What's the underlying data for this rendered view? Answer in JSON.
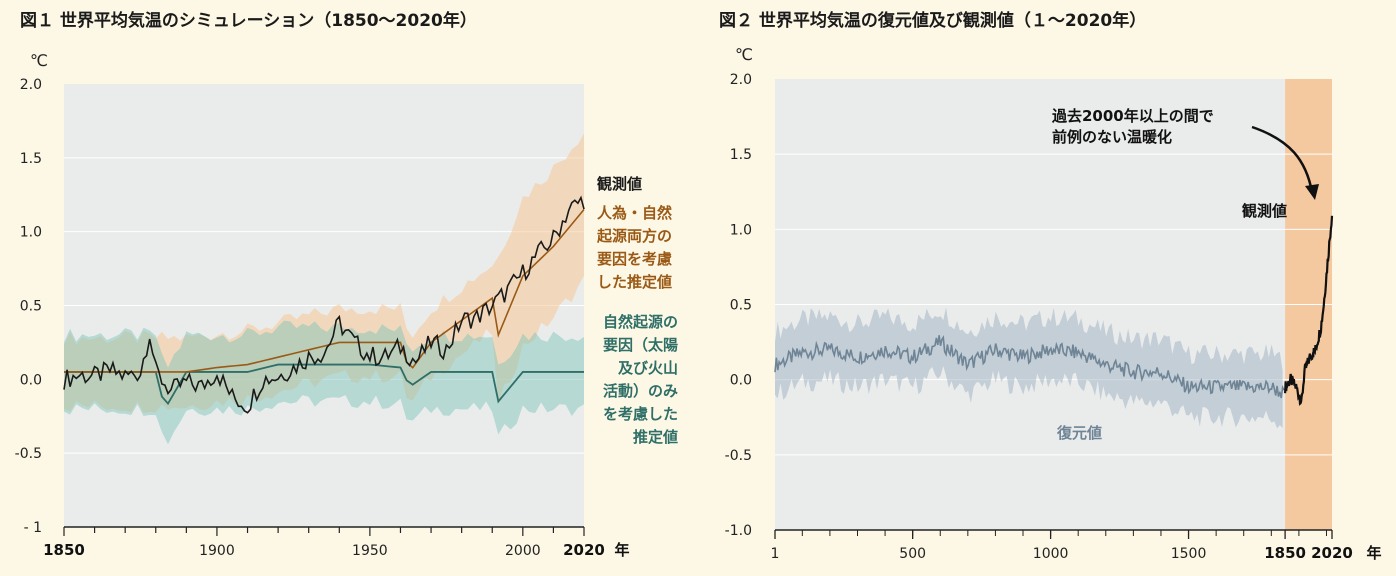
{
  "figure1": {
    "title": "図１ 世界平均気温のシミュレーション（1850〜2020年）",
    "unit": "℃",
    "x_unit": "年",
    "labels": {
      "observed": "観測値",
      "human_natural": [
        "人為・自然",
        "起源両方の",
        "要因を考慮",
        "した推定値"
      ],
      "natural_only": [
        "自然起源の",
        "要因（太陽",
        "及び火山",
        "活動）のみ",
        "を考慮した",
        "推定値"
      ]
    },
    "colors": {
      "observed": "#1a1a1a",
      "human_natural": "#9a5a16",
      "natural_only": "#2f6f68"
    }
  },
  "figure2": {
    "title": "図２ 世界平均気温の復元値及び観測値（１〜2020年）",
    "unit": "℃",
    "x_unit": "年",
    "labels": {
      "warming_note": [
        "過去2000年以上の間で",
        "前例のない温暖化"
      ],
      "observed": "観測値",
      "reconstructed": "復元値"
    },
    "colors": {
      "observed": "#111111",
      "reconstructed": "#6f8596",
      "instrumental_band": "#f5c9a0"
    }
  },
  "chart_data": [
    {
      "type": "line",
      "title": "図１ 世界平均気温のシミュレーション（1850〜2020年）",
      "xlabel": "年",
      "ylabel": "℃",
      "xlim": [
        1850,
        2020
      ],
      "ylim": [
        -1,
        2
      ],
      "x_ticks": [
        "1850",
        "1900",
        "1950",
        "2000",
        "2020"
      ],
      "y_ticks": [
        "2.0",
        "1.5",
        "1.0",
        "0.5",
        "0.0",
        "-0.5",
        "- 1"
      ],
      "series": [
        {
          "name": "観測値",
          "x": [
            1850,
            1855,
            1860,
            1865,
            1870,
            1875,
            1878,
            1880,
            1885,
            1890,
            1895,
            1900,
            1905,
            1910,
            1915,
            1920,
            1925,
            1930,
            1935,
            1940,
            1945,
            1950,
            1955,
            1960,
            1965,
            1970,
            1975,
            1980,
            1985,
            1990,
            1995,
            2000,
            2005,
            2010,
            2015,
            2020
          ],
          "y": [
            0.0,
            0.03,
            0.02,
            0.06,
            0.02,
            0.05,
            0.32,
            0.05,
            -0.08,
            -0.02,
            -0.05,
            0.05,
            -0.12,
            -0.18,
            0.0,
            0.02,
            0.08,
            0.15,
            0.18,
            0.38,
            0.25,
            0.16,
            0.15,
            0.22,
            0.12,
            0.25,
            0.2,
            0.4,
            0.42,
            0.5,
            0.6,
            0.72,
            0.85,
            0.95,
            1.15,
            1.22
          ]
        },
        {
          "name": "人為・自然起源両方の要因を考慮した推定値",
          "x": [
            1850,
            1860,
            1870,
            1880,
            1890,
            1900,
            1910,
            1920,
            1930,
            1940,
            1950,
            1960,
            1963,
            1970,
            1980,
            1990,
            1992,
            2000,
            2010,
            2020
          ],
          "y": [
            0.05,
            0.05,
            0.05,
            0.05,
            0.05,
            0.08,
            0.1,
            0.15,
            0.2,
            0.25,
            0.25,
            0.25,
            0.05,
            0.25,
            0.4,
            0.55,
            0.3,
            0.7,
            0.9,
            1.15
          ]
        },
        {
          "name": "自然起源の要因（太陽及び火山活動）のみを考慮した推定値",
          "x": [
            1850,
            1860,
            1870,
            1880,
            1883,
            1890,
            1900,
            1910,
            1920,
            1930,
            1940,
            1950,
            1960,
            1963,
            1970,
            1980,
            1990,
            1992,
            2000,
            2010,
            2020
          ],
          "y": [
            0.05,
            0.05,
            0.05,
            0.05,
            -0.2,
            0.05,
            0.05,
            0.05,
            0.1,
            0.1,
            0.1,
            0.1,
            0.08,
            -0.05,
            0.05,
            0.05,
            0.05,
            -0.15,
            0.05,
            0.05,
            0.05
          ]
        }
      ]
    },
    {
      "type": "line",
      "title": "図２ 世界平均気温の復元値及び観測値（１〜2020年）",
      "xlabel": "年",
      "ylabel": "℃",
      "xlim": [
        1,
        2020
      ],
      "ylim": [
        -1,
        2
      ],
      "x_ticks": [
        "1",
        "500",
        "1000",
        "1500",
        "1850",
        "2020"
      ],
      "y_ticks": [
        "2.0",
        "1.5",
        "1.0",
        "0.5",
        "0.0",
        "-0.5",
        "-1.0"
      ],
      "series": [
        {
          "name": "復元値",
          "x": [
            1,
            100,
            200,
            300,
            400,
            500,
            600,
            700,
            800,
            900,
            1000,
            1100,
            1200,
            1300,
            1400,
            1500,
            1600,
            1700,
            1800,
            1850
          ],
          "y": [
            0.1,
            0.18,
            0.2,
            0.15,
            0.2,
            0.15,
            0.25,
            0.1,
            0.2,
            0.15,
            0.2,
            0.18,
            0.1,
            0.05,
            0.05,
            -0.05,
            -0.05,
            -0.05,
            -0.05,
            -0.1
          ]
        },
        {
          "name": "観測値",
          "x": [
            1850,
            1870,
            1890,
            1900,
            1910,
            1920,
            1940,
            1960,
            1980,
            1990,
            2000,
            2010,
            2020
          ],
          "y": [
            -0.05,
            0.0,
            -0.05,
            -0.1,
            -0.15,
            0.05,
            0.15,
            0.2,
            0.35,
            0.5,
            0.7,
            0.9,
            1.1
          ]
        }
      ]
    }
  ]
}
